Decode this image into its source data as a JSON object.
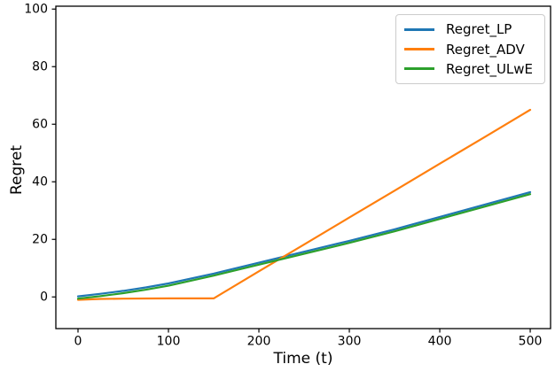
{
  "chart_data": {
    "type": "line",
    "title": "",
    "xlabel": "Time (t)",
    "ylabel": "Regret",
    "xlim": [
      -24.5,
      522.5
    ],
    "ylim": [
      -11,
      101
    ],
    "x_ticks": [
      0,
      100,
      200,
      300,
      400,
      500
    ],
    "y_ticks": [
      0,
      20,
      40,
      60,
      80,
      100
    ],
    "grid": false,
    "legend_position": "upper right",
    "x": [
      0,
      25,
      50,
      75,
      100,
      150,
      200,
      250,
      300,
      350,
      400,
      450,
      500
    ],
    "series": [
      {
        "name": "Regret_LP",
        "color": "#1f77b4",
        "values": [
          0.2,
          1.1,
          2.1,
          3.3,
          4.7,
          8.1,
          11.9,
          15.7,
          19.5,
          23.5,
          27.8,
          32.1,
          36.4
        ]
      },
      {
        "name": "Regret_ADV",
        "color": "#ff7f0e",
        "values": [
          -1.0,
          -0.7,
          -0.6,
          -0.55,
          -0.5,
          -0.5,
          8.9,
          18.2,
          27.6,
          36.9,
          46.3,
          55.6,
          65.0
        ]
      },
      {
        "name": "Regret_ULwE",
        "color": "#2ca02c",
        "values": [
          -0.6,
          0.3,
          1.3,
          2.5,
          3.9,
          7.4,
          11.2,
          15.0,
          18.8,
          22.8,
          27.1,
          31.4,
          35.7
        ]
      }
    ]
  }
}
